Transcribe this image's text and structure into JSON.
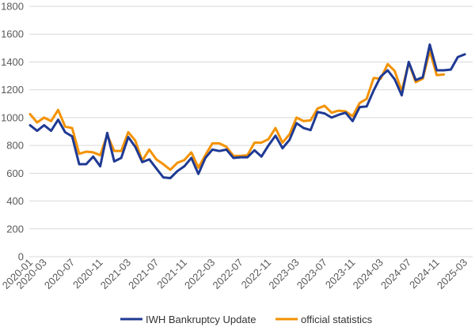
{
  "chart_data": {
    "type": "line",
    "ylim": [
      0,
      1800
    ],
    "yticks": [
      0,
      200,
      400,
      600,
      800,
      1000,
      1200,
      1400,
      1600,
      1800
    ],
    "x_tick_labels": [
      "2020-01",
      "2020-03",
      "2020-07",
      "2020-11",
      "2021-03",
      "2021-07",
      "2021-11",
      "2022-03",
      "2022-07",
      "2022-11",
      "2023-03",
      "2023-07",
      "2023-11",
      "2024-03",
      "2024-07",
      "2024-11",
      "2025-03"
    ],
    "grid": "horizontal",
    "legend_position": "bottom",
    "x": [
      "2020-01",
      "2020-02",
      "2020-03",
      "2020-04",
      "2020-05",
      "2020-06",
      "2020-07",
      "2020-08",
      "2020-09",
      "2020-10",
      "2020-11",
      "2020-12",
      "2021-01",
      "2021-02",
      "2021-03",
      "2021-04",
      "2021-05",
      "2021-06",
      "2021-07",
      "2021-08",
      "2021-09",
      "2021-10",
      "2021-11",
      "2021-12",
      "2022-01",
      "2022-02",
      "2022-03",
      "2022-04",
      "2022-05",
      "2022-06",
      "2022-07",
      "2022-08",
      "2022-09",
      "2022-10",
      "2022-11",
      "2022-12",
      "2023-01",
      "2023-02",
      "2023-03",
      "2023-04",
      "2023-05",
      "2023-06",
      "2023-07",
      "2023-08",
      "2023-09",
      "2023-10",
      "2023-11",
      "2023-12",
      "2024-01",
      "2024-02",
      "2024-03",
      "2024-04",
      "2024-05",
      "2024-06",
      "2024-07",
      "2024-08",
      "2024-09",
      "2024-10",
      "2024-11",
      "2024-12",
      "2025-01",
      "2025-02",
      "2025-03",
      "2025-04"
    ],
    "series": [
      {
        "name": "IWH Bankruptcy Update",
        "color": "#1f3a93",
        "values": [
          945,
          905,
          945,
          905,
          985,
          895,
          865,
          665,
          665,
          720,
          650,
          890,
          685,
          710,
          860,
          790,
          680,
          700,
          635,
          570,
          565,
          615,
          650,
          710,
          595,
          710,
          770,
          760,
          770,
          710,
          715,
          715,
          765,
          720,
          800,
          870,
          780,
          840,
          960,
          925,
          910,
          1040,
          1030,
          1000,
          1020,
          1035,
          975,
          1075,
          1080,
          1195,
          1295,
          1340,
          1275,
          1160,
          1400,
          1270,
          1290,
          1525,
          1340,
          1340,
          1345,
          1435,
          1455,
          null
        ]
      },
      {
        "name": "official statistics",
        "color": "#f39200",
        "values": [
          1025,
          965,
          1000,
          975,
          1055,
          935,
          925,
          740,
          755,
          750,
          730,
          875,
          760,
          760,
          895,
          835,
          690,
          770,
          700,
          665,
          625,
          675,
          695,
          750,
          640,
          730,
          815,
          815,
          790,
          725,
          725,
          730,
          820,
          820,
          845,
          925,
          820,
          880,
          1000,
          975,
          980,
          1065,
          1085,
          1035,
          1050,
          1045,
          1010,
          1105,
          1135,
          1285,
          1280,
          1385,
          1335,
          1190,
          1395,
          1255,
          1280,
          1480,
          1305,
          1310,
          null,
          null,
          null,
          null
        ]
      }
    ]
  }
}
